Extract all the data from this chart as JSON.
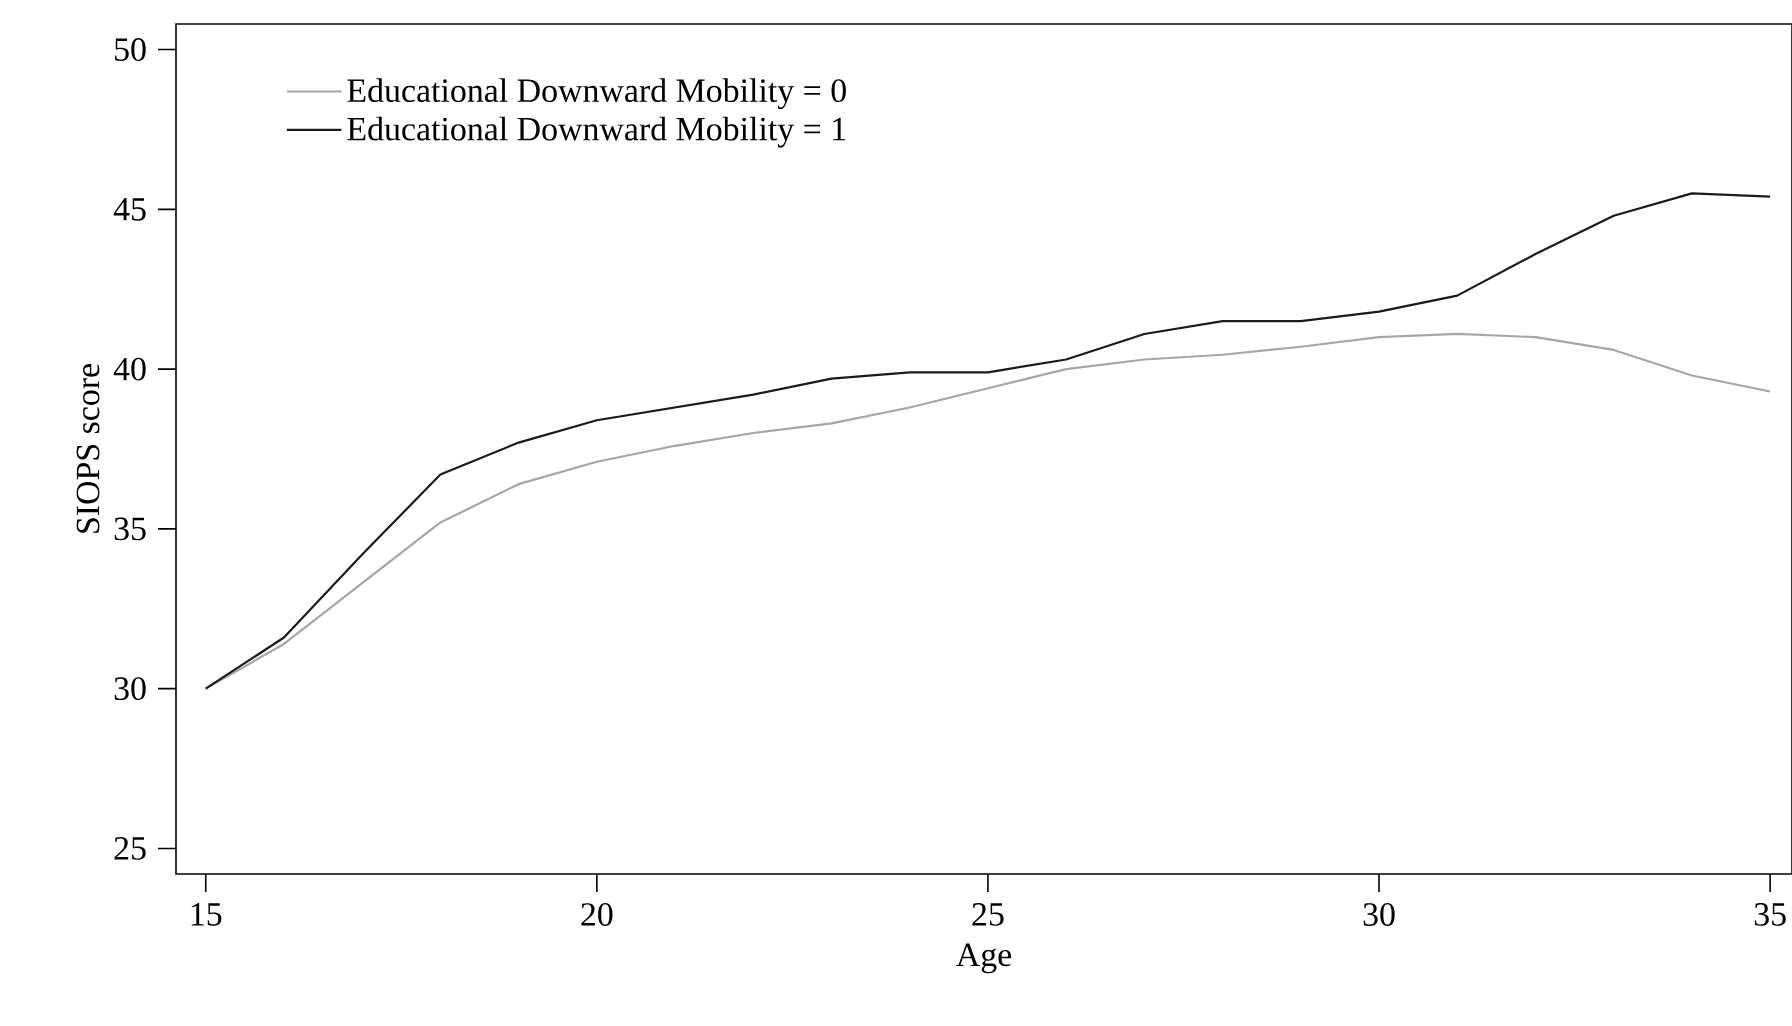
{
  "chart_data": {
    "type": "line",
    "xlabel": "Age",
    "ylabel": "SIOPS score",
    "x": [
      15,
      16,
      17,
      18,
      19,
      20,
      21,
      22,
      23,
      24,
      25,
      26,
      27,
      28,
      29,
      30,
      31,
      32,
      33,
      34,
      35
    ],
    "series": [
      {
        "name": "Educational Downward Mobility = 0",
        "color": "#a6a6a6",
        "values": [
          30.0,
          31.4,
          33.3,
          35.2,
          36.4,
          37.1,
          37.6,
          38.0,
          38.3,
          38.8,
          39.4,
          40.0,
          40.3,
          40.45,
          40.7,
          41.0,
          41.1,
          41.0,
          40.6,
          39.8,
          39.3
        ]
      },
      {
        "name": "Educational Downward Mobility = 1",
        "color": "#1a1a1a",
        "values": [
          30.0,
          31.6,
          34.2,
          36.7,
          37.7,
          38.4,
          38.8,
          39.2,
          39.7,
          39.9,
          39.9,
          40.3,
          41.1,
          41.5,
          41.5,
          41.8,
          42.3,
          43.6,
          44.8,
          45.5,
          45.4
        ]
      }
    ],
    "xlim": [
      14.62,
      35.28
    ],
    "ylim": [
      24.2,
      50.8
    ],
    "xticks": [
      15,
      20,
      25,
      30,
      35
    ],
    "yticks": [
      25,
      30,
      35,
      40,
      45,
      50
    ],
    "grid": false,
    "legend": "top left",
    "marker": "none",
    "line_style": "solid"
  }
}
